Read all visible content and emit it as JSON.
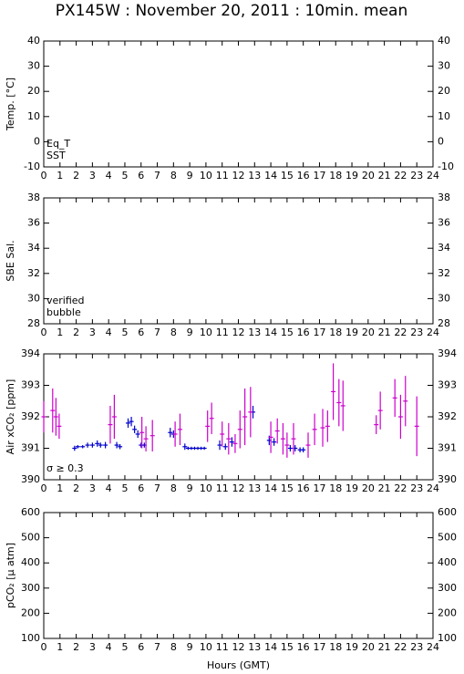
{
  "title": "PX145W : November 20, 2011 : 10min. mean",
  "chart_data": [
    {
      "type": "scatter",
      "ylabel": "Temp. [°C]",
      "xlim": [
        0,
        24
      ],
      "xticks": [
        0,
        1,
        2,
        3,
        4,
        5,
        6,
        7,
        8,
        9,
        10,
        11,
        12,
        13,
        14,
        15,
        16,
        17,
        18,
        19,
        20,
        21,
        22,
        23,
        24
      ],
      "ylim": [
        -10,
        40
      ],
      "yticks": [
        -10,
        0,
        10,
        20,
        30,
        40
      ],
      "series": [
        {
          "name": "Eq_T",
          "color": "#e00000",
          "x": [],
          "values": []
        },
        {
          "name": "SST",
          "color": "#0000cc",
          "x": [],
          "values": []
        }
      ]
    },
    {
      "type": "scatter",
      "ylabel": "SBE Sal.",
      "xlim": [
        0,
        24
      ],
      "xticks": [
        0,
        1,
        2,
        3,
        4,
        5,
        6,
        7,
        8,
        9,
        10,
        11,
        12,
        13,
        14,
        15,
        16,
        17,
        18,
        19,
        20,
        21,
        22,
        23,
        24
      ],
      "ylim": [
        28,
        38
      ],
      "yticks": [
        28,
        30,
        32,
        34,
        36,
        38
      ],
      "series": [
        {
          "name": "verified",
          "color": "#0000cc",
          "x": [],
          "values": []
        },
        {
          "name": "bubble",
          "color": "#cc00cc",
          "x": [],
          "values": []
        }
      ]
    },
    {
      "type": "errorbar",
      "ylabel": "Air xCO₂ [ppm]",
      "xlim": [
        0,
        24
      ],
      "xticks": [
        0,
        1,
        2,
        3,
        4,
        5,
        6,
        7,
        8,
        9,
        10,
        11,
        12,
        13,
        14,
        15,
        16,
        17,
        18,
        19,
        20,
        21,
        22,
        23,
        24
      ],
      "ylim": [
        390,
        394
      ],
      "yticks": [
        390,
        391,
        392,
        393,
        394
      ],
      "series": [
        {
          "color": "#0000cc",
          "x": [
            1.9,
            2.1,
            2.4,
            2.7,
            3.0,
            3.3,
            3.5,
            3.8,
            4.5,
            4.7,
            5.2,
            5.4,
            5.6,
            5.8,
            6.0,
            6.2,
            7.8,
            8.0,
            8.7,
            8.9,
            9.1,
            9.3,
            9.5,
            9.7,
            9.9,
            10.85,
            11.2,
            11.6,
            12.9,
            13.9,
            14.2,
            15.2,
            15.5,
            15.8,
            16.0
          ],
          "values": [
            391.0,
            391.05,
            391.05,
            391.1,
            391.1,
            391.15,
            391.1,
            391.1,
            391.1,
            391.05,
            391.8,
            391.85,
            391.6,
            391.45,
            391.1,
            391.1,
            391.5,
            391.45,
            391.05,
            391.0,
            391.0,
            391.0,
            391.0,
            391.0,
            391.0,
            391.1,
            391.05,
            391.2,
            392.15,
            391.25,
            391.2,
            391.0,
            391.0,
            390.95,
            390.95
          ],
          "errors": [
            0.08,
            0.05,
            0.05,
            0.08,
            0.08,
            0.1,
            0.08,
            0.1,
            0.1,
            0.08,
            0.15,
            0.15,
            0.12,
            0.12,
            0.08,
            0.08,
            0.15,
            0.12,
            0.1,
            0.05,
            0.05,
            0.05,
            0.05,
            0.05,
            0.05,
            0.15,
            0.1,
            0.15,
            0.2,
            0.15,
            0.12,
            0.1,
            0.1,
            0.08,
            0.08
          ]
        },
        {
          "name": "σ ≥ 0.3",
          "color": "#cc00cc",
          "x": [
            0.0,
            0.55,
            0.75,
            0.95,
            4.1,
            4.35,
            6.05,
            6.3,
            6.7,
            8.1,
            8.4,
            10.1,
            10.35,
            11.0,
            11.4,
            11.8,
            12.1,
            12.4,
            12.75,
            14.0,
            14.4,
            14.75,
            15.0,
            15.4,
            16.3,
            16.7,
            17.2,
            17.5,
            17.85,
            18.2,
            18.45,
            20.5,
            20.75,
            21.65,
            22.0,
            22.3,
            23.0
          ],
          "values": [
            392.0,
            392.2,
            392.0,
            391.7,
            391.75,
            392.0,
            391.5,
            391.3,
            391.4,
            391.45,
            391.6,
            391.7,
            391.95,
            391.45,
            391.3,
            391.15,
            391.6,
            392.0,
            392.15,
            391.35,
            391.55,
            391.3,
            391.1,
            391.3,
            391.1,
            391.6,
            391.65,
            391.7,
            392.8,
            392.45,
            392.35,
            391.75,
            392.2,
            392.6,
            392.0,
            392.5,
            391.7
          ],
          "errors": [
            0.5,
            0.7,
            0.6,
            0.4,
            0.6,
            0.7,
            0.5,
            0.4,
            0.5,
            0.4,
            0.5,
            0.5,
            0.5,
            0.4,
            0.5,
            0.3,
            0.6,
            0.9,
            0.8,
            0.5,
            0.4,
            0.5,
            0.4,
            0.5,
            0.4,
            0.5,
            0.6,
            0.5,
            0.9,
            0.75,
            0.8,
            0.3,
            0.6,
            0.6,
            0.7,
            0.8,
            0.95
          ]
        }
      ]
    },
    {
      "type": "scatter",
      "ylabel": "pCO₂ [μ atm]",
      "xlabel": "Hours (GMT)",
      "xlim": [
        0,
        24
      ],
      "xticks": [
        0,
        1,
        2,
        3,
        4,
        5,
        6,
        7,
        8,
        9,
        10,
        11,
        12,
        13,
        14,
        15,
        16,
        17,
        18,
        19,
        20,
        21,
        22,
        23,
        24
      ],
      "ylim": [
        100,
        600
      ],
      "yticks": [
        100,
        200,
        300,
        400,
        500,
        600
      ],
      "series": []
    }
  ]
}
